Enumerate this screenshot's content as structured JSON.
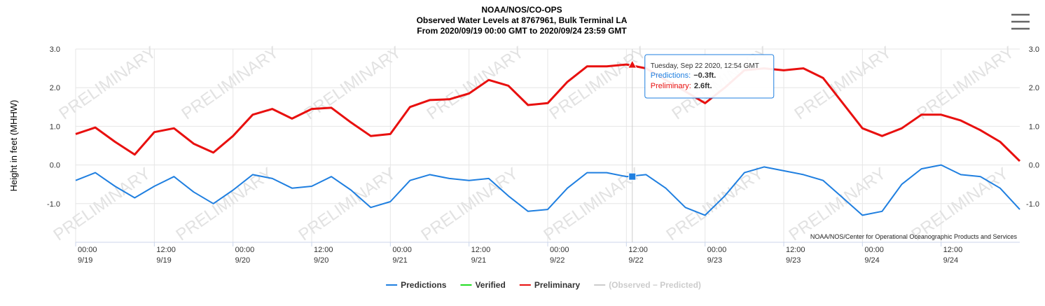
{
  "chart_data": {
    "type": "line",
    "title": "NOAA/NOS/CO-OPS",
    "subtitle": "Observed Water Levels at 8767961, Bulk Terminal LA",
    "subtitle2": "From 2020/09/19 00:00 GMT to 2020/09/24 23:59 GMT",
    "y_label": "Height in feet (MHHW)",
    "credits": "NOAA/NOS/Center for Operational Oceanographic Products and Services",
    "watermark": "PRELIMINARY",
    "xlim": [
      0,
      144
    ],
    "ylim": [
      -2,
      3
    ],
    "grid": true,
    "yticks": [
      {
        "value": 3,
        "label": "3.0"
      },
      {
        "value": 2,
        "label": "2.0"
      },
      {
        "value": 1,
        "label": "1.0"
      },
      {
        "value": 0,
        "label": "0.0"
      },
      {
        "value": -1,
        "label": "-1.0"
      }
    ],
    "xticks": [
      {
        "value": 0,
        "label": "00:00",
        "date": "9/19"
      },
      {
        "value": 12,
        "label": "12:00",
        "date": "9/19"
      },
      {
        "value": 24,
        "label": "00:00",
        "date": "9/20"
      },
      {
        "value": 36,
        "label": "12:00",
        "date": "9/20"
      },
      {
        "value": 48,
        "label": "00:00",
        "date": "9/21"
      },
      {
        "value": 60,
        "label": "12:00",
        "date": "9/21"
      },
      {
        "value": 72,
        "label": "00:00",
        "date": "9/22"
      },
      {
        "value": 84,
        "label": "12:00",
        "date": "9/22"
      },
      {
        "value": 96,
        "label": "00:00",
        "date": "9/23"
      },
      {
        "value": 108,
        "label": "12:00",
        "date": "9/23"
      },
      {
        "value": 120,
        "label": "00:00",
        "date": "9/24"
      },
      {
        "value": 132,
        "label": "12:00",
        "date": "9/24"
      }
    ],
    "x": [
      0,
      3,
      6,
      9,
      12,
      15,
      18,
      21,
      24,
      27,
      30,
      33,
      36,
      39,
      42,
      45,
      48,
      51,
      54,
      57,
      60,
      63,
      66,
      69,
      72,
      75,
      78,
      81,
      84,
      87,
      90,
      93,
      96,
      99,
      102,
      105,
      108,
      111,
      114,
      117,
      120,
      123,
      126,
      129,
      132,
      135,
      138,
      141,
      144
    ],
    "series": [
      {
        "name": "Predictions",
        "color": "#1f7fe0",
        "values": [
          -0.4,
          -0.2,
          -0.55,
          -0.85,
          -0.55,
          -0.3,
          -0.7,
          -1.0,
          -0.65,
          -0.25,
          -0.35,
          -0.6,
          -0.55,
          -0.3,
          -0.65,
          -1.1,
          -0.95,
          -0.4,
          -0.25,
          -0.35,
          -0.4,
          -0.35,
          -0.8,
          -1.2,
          -1.15,
          -0.6,
          -0.2,
          -0.2,
          -0.3,
          -0.25,
          -0.6,
          -1.1,
          -1.3,
          -0.8,
          -0.2,
          -0.05,
          -0.15,
          -0.25,
          -0.4,
          -0.85,
          -1.3,
          -1.2,
          -0.5,
          -0.1,
          0.0,
          -0.25,
          -0.3,
          -0.6,
          -1.15
        ]
      },
      {
        "name": "Preliminary",
        "color": "#e8100f",
        "values": [
          0.8,
          0.97,
          0.6,
          0.27,
          0.85,
          0.95,
          0.55,
          0.32,
          0.75,
          1.3,
          1.45,
          1.2,
          1.45,
          1.48,
          1.1,
          0.75,
          0.8,
          1.5,
          1.68,
          1.7,
          1.85,
          2.2,
          2.05,
          1.55,
          1.6,
          2.15,
          2.55,
          2.55,
          2.6,
          2.5,
          2.2,
          1.9,
          1.6,
          2.0,
          2.45,
          2.5,
          2.45,
          2.5,
          2.25,
          1.6,
          0.95,
          0.75,
          0.95,
          1.3,
          1.3,
          1.15,
          0.9,
          0.6,
          0.1
        ]
      }
    ],
    "legend": [
      {
        "series": 0
      },
      {
        "name": "Verified",
        "color": "#22dd22"
      },
      {
        "series": 1
      },
      {
        "name": "(Observed − Predicted)",
        "color": "#cccccc",
        "disabled": true
      }
    ],
    "tooltip": {
      "x": 84.9,
      "header": "Tuesday, Sep 22 2020, 12:54 GMT",
      "items": [
        {
          "series": 0,
          "name": "Predictions:",
          "value": -0.3,
          "value_label": "−0.3ft."
        },
        {
          "series": 1,
          "name": "Preliminary:",
          "value": 2.6,
          "value_label": "2.6ft."
        }
      ]
    }
  }
}
